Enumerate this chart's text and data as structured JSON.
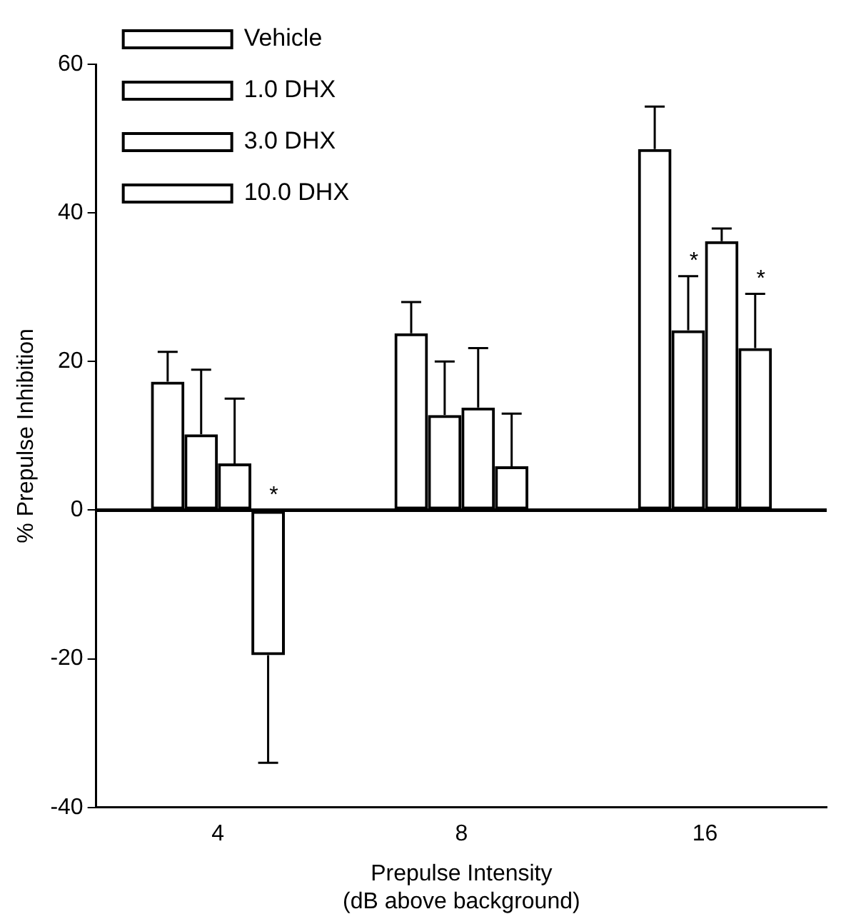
{
  "chart_data": {
    "type": "bar",
    "xlabel": "Prepulse Intensity\n(dB above background)",
    "ylabel": "% Prepulse Inhibition",
    "categories": [
      "4",
      "8",
      "16"
    ],
    "series": [
      {
        "name": "Vehicle",
        "color": "#000000",
        "values": [
          17.3,
          23.8,
          48.6
        ],
        "errors": [
          4,
          4.2,
          5.7
        ]
      },
      {
        "name": "1.0 DHX",
        "color": "#000000",
        "values": [
          10.2,
          12.8,
          24.2
        ],
        "errors": [
          8.7,
          7.2,
          7.3
        ]
      },
      {
        "name": "3.0 DHX",
        "color": "#000000",
        "values": [
          6.3,
          13.8,
          36.2
        ],
        "errors": [
          8.7,
          8,
          1.7
        ]
      },
      {
        "name": "10.0 DHX",
        "color": "#000000",
        "values": [
          -19.5,
          5.9,
          21.8
        ],
        "errors": [
          14.5,
          7.1,
          7.3
        ]
      }
    ],
    "ylim": [
      -40,
      60
    ],
    "yticks": [
      -40,
      -20,
      0,
      20,
      40,
      60
    ],
    "grid": false,
    "legend": "top left",
    "ref_lines": [
      {
        "axis": "y",
        "value": 0
      }
    ],
    "annotations": [
      {
        "text": "*",
        "x": "4",
        "y": 0
      },
      {
        "text": "*",
        "x": "16",
        "y": 31.5
      },
      {
        "text": "*",
        "x": "16",
        "y": 29.1
      }
    ]
  }
}
